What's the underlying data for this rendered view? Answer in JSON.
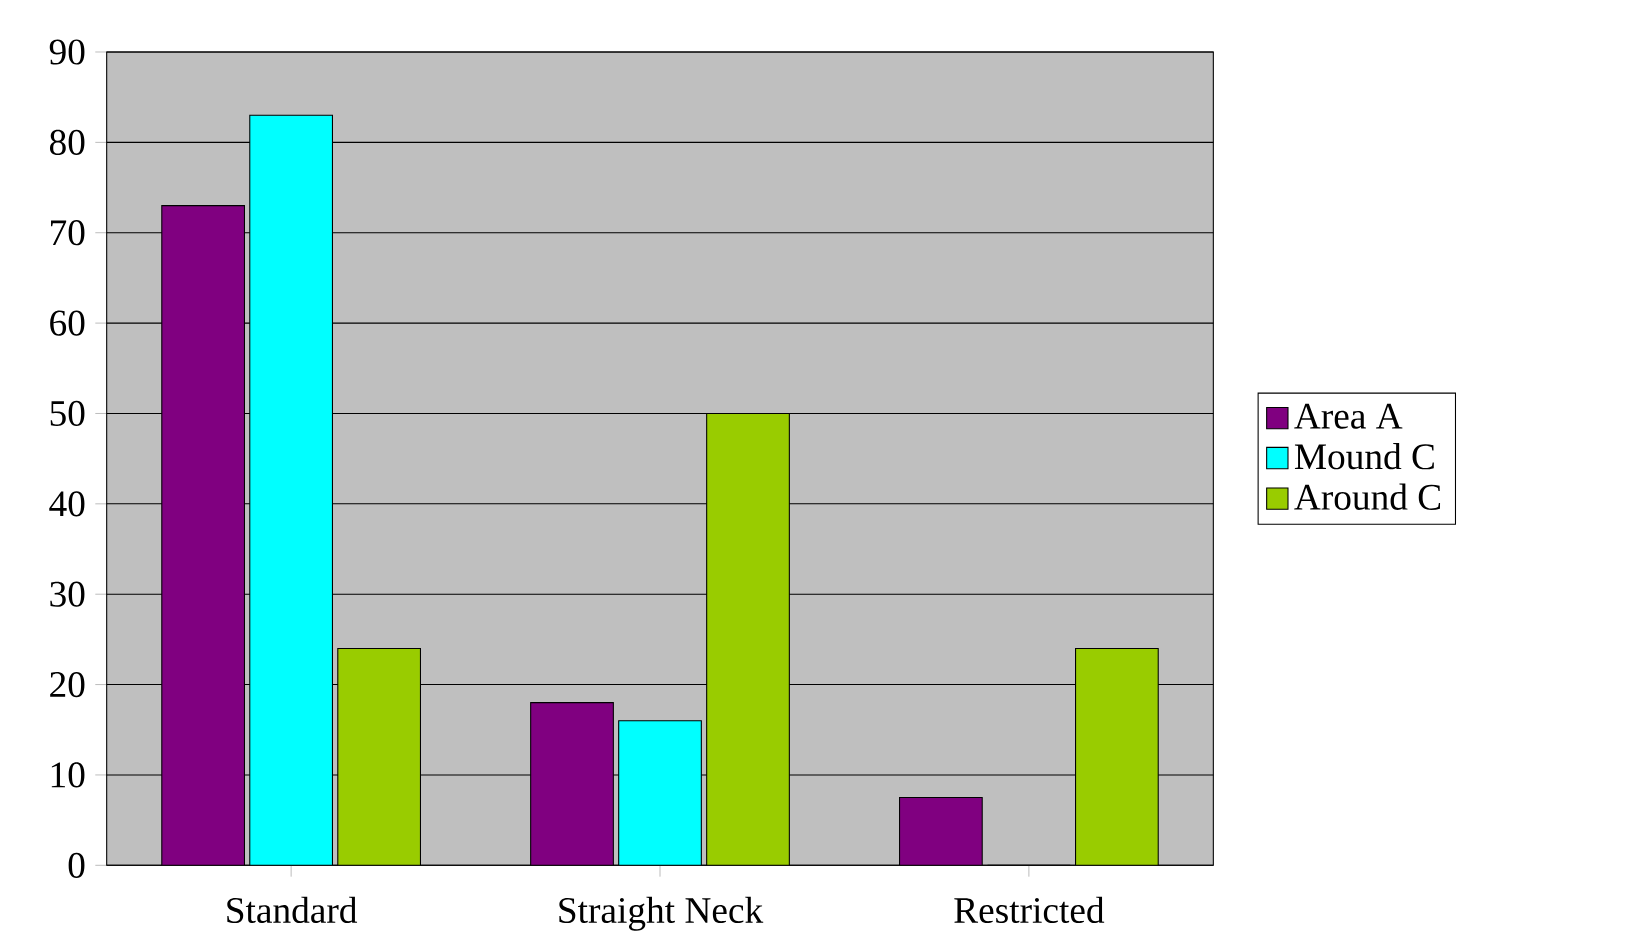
{
  "chart_data": {
    "type": "bar",
    "categories": [
      "Standard",
      "Straight Neck",
      "Restricted"
    ],
    "series": [
      {
        "name": "Area A",
        "color": "#800080",
        "values": [
          73,
          18,
          7.5
        ]
      },
      {
        "name": "Mound C",
        "color": "#00ffff",
        "values": [
          83,
          16,
          0
        ]
      },
      {
        "name": "Around C",
        "color": "#99cc00",
        "values": [
          24,
          50,
          24
        ]
      }
    ],
    "ylim": [
      0,
      90
    ],
    "yticks": [
      0,
      10,
      20,
      30,
      40,
      50,
      60,
      70,
      80,
      90
    ],
    "grid": "y",
    "legend": "right"
  }
}
